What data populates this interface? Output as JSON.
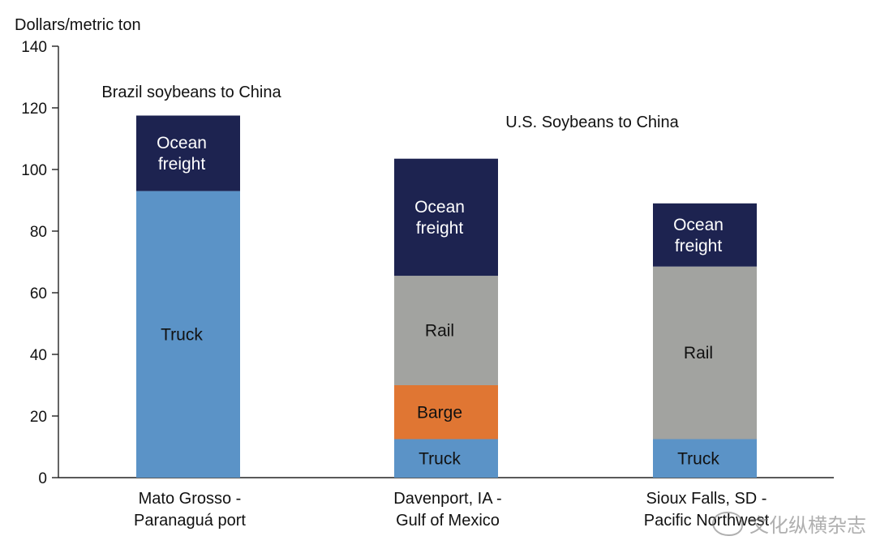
{
  "chart_data": {
    "type": "bar",
    "stacked": true,
    "ylabel": "Dollars/metric ton",
    "ylim": [
      0,
      140
    ],
    "yticks": [
      0,
      20,
      40,
      60,
      80,
      100,
      120,
      140
    ],
    "grid": false,
    "categories": [
      "Mato Grosso -\nParanaguá port",
      "Davenport, IA -\nGulf of Mexico",
      "Sioux Falls, SD -\nPacific Northwest"
    ],
    "series": [
      {
        "name": "Truck",
        "color": "#5b93c7",
        "text_color": "#111111",
        "values": [
          93,
          12.5,
          12.5
        ]
      },
      {
        "name": "Barge",
        "color": "#e07633",
        "text_color": "#111111",
        "values": [
          0,
          17.5,
          0
        ]
      },
      {
        "name": "Rail",
        "color": "#a2a3a0",
        "text_color": "#111111",
        "values": [
          0,
          35.5,
          56
        ]
      },
      {
        "name": "Ocean\nfreight",
        "color": "#1d2350",
        "text_color": "#ffffff",
        "values": [
          24.5,
          38,
          20.5
        ]
      }
    ],
    "annotations": [
      {
        "text": "Brazil soybeans to China",
        "category_index": 0
      },
      {
        "text": "U.S. Soybeans to China",
        "category_index": 1
      }
    ]
  },
  "watermark": {
    "text": "文化纵横杂志"
  }
}
